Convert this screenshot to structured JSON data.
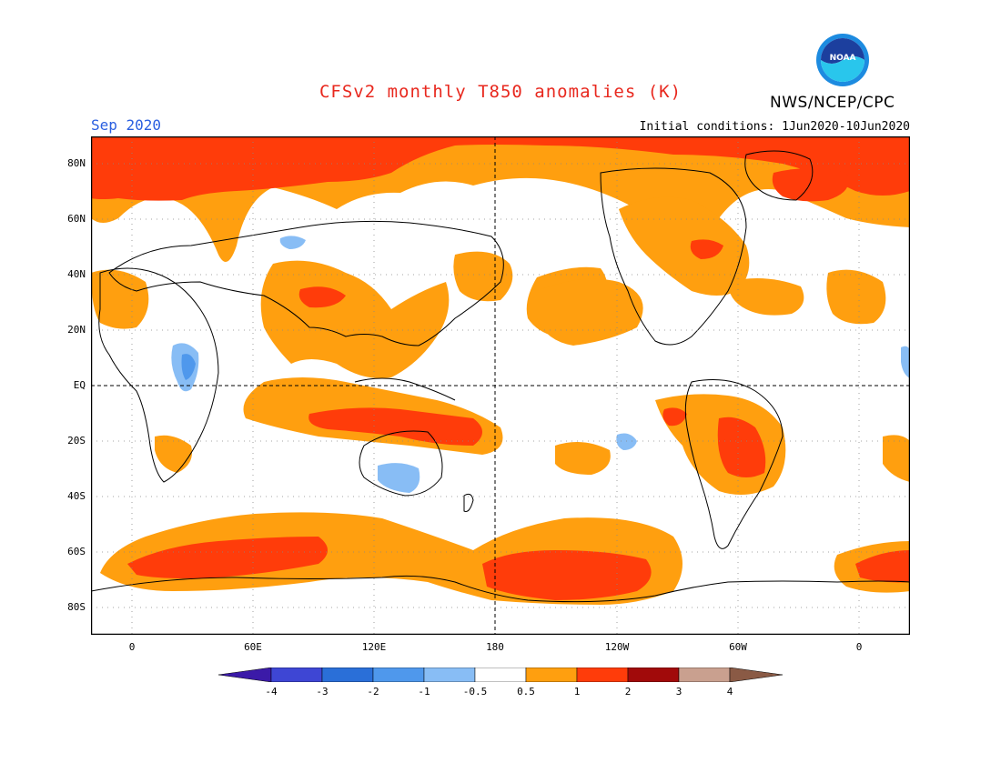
{
  "header": {
    "title": "CFSv2 monthly T850 anomalies (K)",
    "agency": "NWS/NCEP/CPC",
    "month": "Sep 2020",
    "initial_conditions": "Initial conditions: 1Jun2020-10Jun2020",
    "logo_text": "NOAA"
  },
  "axes": {
    "lat_labels": [
      "80N",
      "60N",
      "40N",
      "20N",
      "EQ",
      "20S",
      "40S",
      "60S",
      "80S"
    ],
    "lon_labels": [
      "0",
      "60E",
      "120E",
      "180",
      "120W",
      "60W",
      "0"
    ]
  },
  "colorbar": {
    "labels": [
      "-4",
      "-3",
      "-2",
      "-1",
      "-0.5",
      "0.5",
      "1",
      "2",
      "3",
      "4"
    ],
    "colors": [
      "#3b1aa8",
      "#3e46d4",
      "#2a6fd8",
      "#4f98ec",
      "#88bdf5",
      "#ffffff",
      "#ff9f0f",
      "#ff3c0a",
      "#a10a0a",
      "#c9a08f",
      "#8a5a45"
    ]
  },
  "colors": {
    "title": "#e8281e",
    "month": "#2a5fe0",
    "orange": "#ff9f0f",
    "red": "#ff3c0a",
    "blue": "#88bdf5",
    "blue_dark": "#4f98ec"
  }
}
